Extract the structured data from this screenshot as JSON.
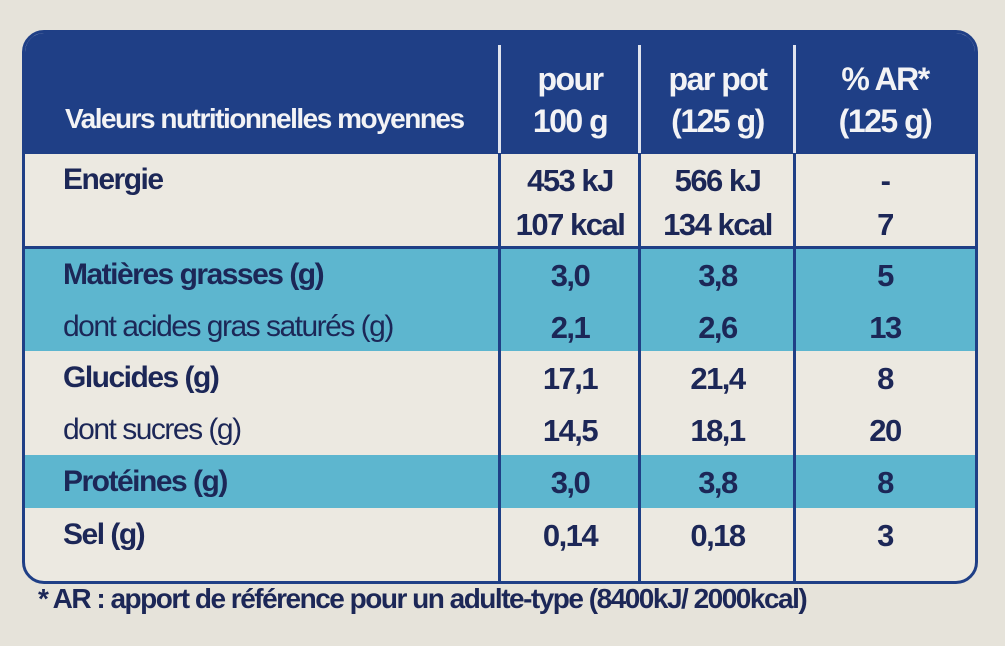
{
  "header": {
    "cells": [
      [
        "Valeurs nutritionnelles moyennes"
      ],
      [
        "pour",
        "100 g"
      ],
      [
        "par pot",
        "(125 g)"
      ],
      [
        "% AR*",
        "(125 g)"
      ]
    ]
  },
  "table": {
    "rows": [
      [
        "Energie",
        [
          "453 kJ",
          "107 kcal"
        ],
        [
          "566 kJ",
          "134 kcal"
        ],
        [
          "-",
          "7"
        ]
      ],
      [
        "Matières grasses (g)",
        "3,0",
        "3,8",
        "5"
      ],
      [
        "dont acides gras saturés (g)",
        "2,1",
        "2,6",
        "13"
      ],
      [
        "Glucides (g)",
        "17,1",
        "21,4",
        "8"
      ],
      [
        "dont sucres (g)",
        "14,5",
        "18,1",
        "20"
      ],
      [
        "Protéines (g)",
        "3,0",
        "3,8",
        "8"
      ],
      [
        "Sel (g)",
        "0,14",
        "0,18",
        "3"
      ]
    ]
  },
  "footnote": "* AR : apport de référence pour un adulte-type (8400kJ/ 2000kcal)"
}
